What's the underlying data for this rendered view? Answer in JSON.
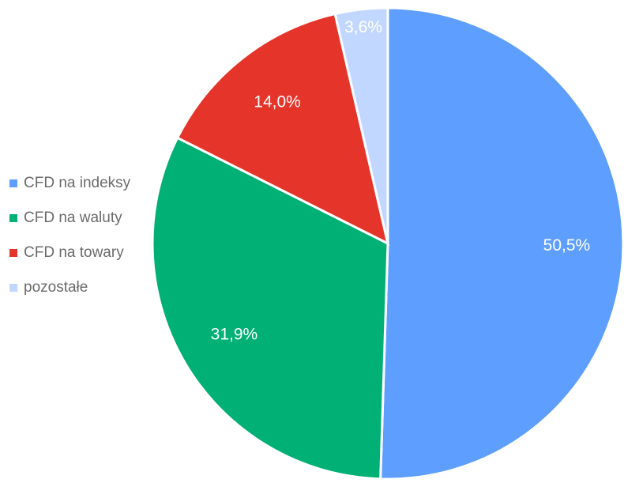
{
  "chart_data": {
    "type": "pie",
    "categories": [
      "CFD na indeksy",
      "CFD na waluty",
      "CFD na towary",
      "pozostałe"
    ],
    "values": [
      50.5,
      31.9,
      14.0,
      3.6
    ],
    "value_labels": [
      "50,5%",
      "31,9%",
      "14,0%",
      "3,6%"
    ],
    "colors": [
      "#5e9eff",
      "#00b074",
      "#e5352b",
      "#c2d7ff"
    ],
    "legend": "left"
  }
}
